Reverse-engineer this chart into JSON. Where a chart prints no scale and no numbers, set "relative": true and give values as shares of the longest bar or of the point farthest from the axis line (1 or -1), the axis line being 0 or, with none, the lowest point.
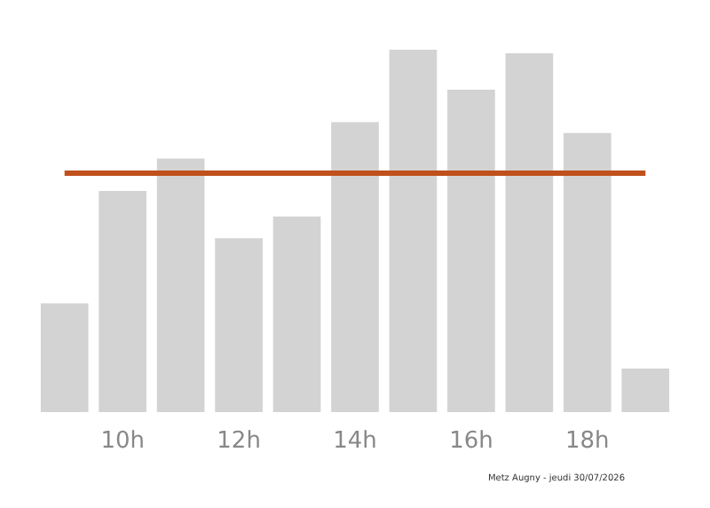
{
  "chart_data": {
    "type": "bar",
    "relative": true,
    "categories": [
      null,
      "10h",
      null,
      "12h",
      null,
      "14h",
      null,
      "16h",
      null,
      "18h",
      null
    ],
    "values": [
      0.3,
      0.61,
      0.7,
      0.48,
      0.54,
      0.8,
      1,
      0.89,
      0.99,
      0.77,
      0.12
    ],
    "color": "#d3d3d3",
    "ref_lines": [
      {
        "axis": "y",
        "value": 0.66,
        "color": "#c0501c",
        "line_style": "solid"
      }
    ],
    "annotations": [
      "Metz Augny - jeudi 30/07/2026"
    ],
    "grid": false
  }
}
